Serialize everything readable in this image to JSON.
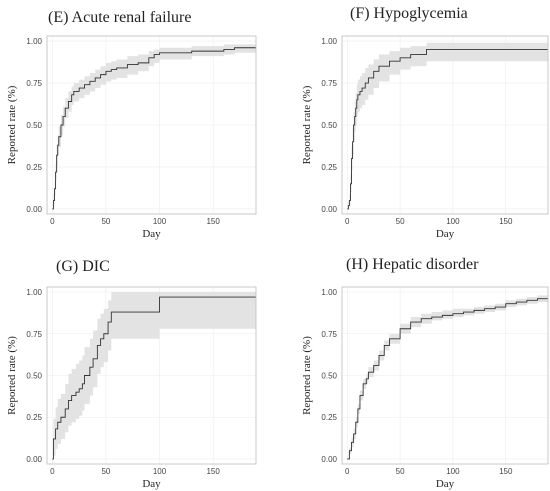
{
  "chart_data": [
    {
      "type": "line",
      "title": "(E) Acute renal failure",
      "xlabel": "Day",
      "ylabel": "Reported rate (%)",
      "xlim": [
        -5,
        190
      ],
      "ylim": [
        -0.03,
        1.03
      ],
      "x_ticks": [
        0,
        50,
        100,
        150
      ],
      "y_ticks": [
        0,
        0.25,
        0.5,
        0.75,
        1
      ],
      "x_tick_labels": [
        "0",
        "50",
        "100",
        "150"
      ],
      "y_tick_labels": [
        "0.00",
        "0.25",
        "0.50",
        "0.75",
        "1.00"
      ],
      "grid": true,
      "step": true,
      "x": [
        0,
        1,
        2,
        3,
        4,
        5,
        6,
        8,
        10,
        12,
        15,
        18,
        20,
        25,
        30,
        35,
        40,
        45,
        50,
        55,
        60,
        70,
        80,
        90,
        95,
        100,
        130,
        160,
        170,
        190
      ],
      "y": [
        0,
        0.05,
        0.12,
        0.22,
        0.32,
        0.38,
        0.43,
        0.5,
        0.55,
        0.6,
        0.64,
        0.68,
        0.7,
        0.72,
        0.74,
        0.76,
        0.78,
        0.8,
        0.82,
        0.83,
        0.84,
        0.86,
        0.87,
        0.9,
        0.92,
        0.93,
        0.94,
        0.95,
        0.96,
        0.96
      ],
      "lower": [
        0,
        0.02,
        0.08,
        0.17,
        0.26,
        0.32,
        0.37,
        0.44,
        0.49,
        0.54,
        0.58,
        0.62,
        0.64,
        0.66,
        0.68,
        0.7,
        0.72,
        0.74,
        0.76,
        0.77,
        0.78,
        0.8,
        0.82,
        0.85,
        0.87,
        0.89,
        0.91,
        0.92,
        0.93,
        0.93
      ],
      "upper": [
        0,
        0.09,
        0.16,
        0.27,
        0.38,
        0.44,
        0.49,
        0.56,
        0.61,
        0.66,
        0.7,
        0.73,
        0.75,
        0.77,
        0.79,
        0.81,
        0.83,
        0.85,
        0.87,
        0.88,
        0.89,
        0.91,
        0.92,
        0.94,
        0.95,
        0.96,
        0.97,
        0.98,
        0.98,
        0.98
      ]
    },
    {
      "type": "line",
      "title": "(F) Hypoglycemia",
      "xlabel": "Day",
      "ylabel": "Reported rate (%)",
      "xlim": [
        -5,
        190
      ],
      "ylim": [
        -0.03,
        1.03
      ],
      "x_ticks": [
        0,
        50,
        100,
        150
      ],
      "y_ticks": [
        0,
        0.25,
        0.5,
        0.75,
        1
      ],
      "x_tick_labels": [
        "0",
        "50",
        "100",
        "150"
      ],
      "y_tick_labels": [
        "0.00",
        "0.25",
        "0.50",
        "0.75",
        "1.00"
      ],
      "grid": true,
      "step": true,
      "x": [
        0,
        1,
        2,
        3,
        4,
        5,
        6,
        7,
        8,
        9,
        10,
        12,
        14,
        17,
        20,
        25,
        30,
        40,
        50,
        60,
        75,
        80,
        190
      ],
      "y": [
        0,
        0.02,
        0.05,
        0.15,
        0.3,
        0.4,
        0.5,
        0.55,
        0.6,
        0.65,
        0.68,
        0.7,
        0.72,
        0.75,
        0.78,
        0.82,
        0.85,
        0.88,
        0.9,
        0.92,
        0.95,
        0.95,
        0.95
      ],
      "lower": [
        0,
        0.0,
        0.02,
        0.1,
        0.23,
        0.32,
        0.41,
        0.46,
        0.5,
        0.55,
        0.58,
        0.6,
        0.62,
        0.65,
        0.68,
        0.72,
        0.76,
        0.8,
        0.83,
        0.85,
        0.88,
        0.88,
        0.88
      ],
      "upper": [
        0,
        0.05,
        0.09,
        0.21,
        0.37,
        0.48,
        0.58,
        0.64,
        0.69,
        0.74,
        0.77,
        0.79,
        0.81,
        0.84,
        0.86,
        0.89,
        0.92,
        0.94,
        0.96,
        0.97,
        0.99,
        0.99,
        0.99
      ]
    },
    {
      "type": "line",
      "title": "(G) DIC",
      "xlabel": "Day",
      "ylabel": "Reported rate (%)",
      "xlim": [
        -5,
        190
      ],
      "ylim": [
        -0.03,
        1.03
      ],
      "x_ticks": [
        0,
        50,
        100,
        150
      ],
      "y_ticks": [
        0,
        0.25,
        0.5,
        0.75,
        1
      ],
      "x_tick_labels": [
        "0",
        "50",
        "100",
        "150"
      ],
      "y_tick_labels": [
        "0.00",
        "0.25",
        "0.50",
        "0.75",
        "1.00"
      ],
      "grid": true,
      "step": true,
      "x": [
        0,
        1,
        3,
        5,
        8,
        12,
        15,
        18,
        22,
        25,
        28,
        30,
        35,
        38,
        42,
        45,
        48,
        52,
        55,
        100,
        190
      ],
      "y": [
        0,
        0.12,
        0.18,
        0.22,
        0.25,
        0.3,
        0.35,
        0.38,
        0.4,
        0.42,
        0.45,
        0.5,
        0.55,
        0.6,
        0.68,
        0.72,
        0.75,
        0.82,
        0.88,
        0.97,
        0.97
      ],
      "lower": [
        0,
        0.02,
        0.06,
        0.09,
        0.12,
        0.16,
        0.2,
        0.22,
        0.24,
        0.26,
        0.29,
        0.33,
        0.38,
        0.43,
        0.51,
        0.55,
        0.58,
        0.65,
        0.72,
        0.78,
        0.78
      ],
      "upper": [
        0,
        0.24,
        0.31,
        0.36,
        0.39,
        0.45,
        0.51,
        0.54,
        0.57,
        0.59,
        0.62,
        0.67,
        0.72,
        0.77,
        0.84,
        0.87,
        0.9,
        0.95,
        1.0,
        1.0,
        1.0
      ]
    },
    {
      "type": "line",
      "title": "(H) Hepatic disorder",
      "xlabel": "Day",
      "ylabel": "Reported rate (%)",
      "xlim": [
        -5,
        190
      ],
      "ylim": [
        -0.03,
        1.03
      ],
      "x_ticks": [
        0,
        50,
        100,
        150
      ],
      "y_ticks": [
        0,
        0.25,
        0.5,
        0.75,
        1
      ],
      "x_tick_labels": [
        "0",
        "50",
        "100",
        "150"
      ],
      "y_tick_labels": [
        "0.00",
        "0.25",
        "0.50",
        "0.75",
        "1.00"
      ],
      "grid": true,
      "step": true,
      "x": [
        0,
        2,
        4,
        6,
        8,
        10,
        12,
        15,
        18,
        20,
        25,
        30,
        35,
        40,
        50,
        60,
        70,
        80,
        90,
        100,
        110,
        120,
        130,
        140,
        150,
        160,
        170,
        180,
        190
      ],
      "y": [
        0,
        0.05,
        0.1,
        0.15,
        0.22,
        0.3,
        0.38,
        0.45,
        0.48,
        0.52,
        0.56,
        0.62,
        0.68,
        0.72,
        0.78,
        0.82,
        0.84,
        0.85,
        0.86,
        0.87,
        0.88,
        0.89,
        0.9,
        0.91,
        0.93,
        0.94,
        0.95,
        0.96,
        0.96
      ],
      "lower": [
        0,
        0.03,
        0.07,
        0.12,
        0.19,
        0.27,
        0.35,
        0.42,
        0.45,
        0.49,
        0.53,
        0.59,
        0.65,
        0.69,
        0.75,
        0.79,
        0.81,
        0.83,
        0.84,
        0.85,
        0.86,
        0.87,
        0.88,
        0.89,
        0.91,
        0.92,
        0.93,
        0.94,
        0.94
      ],
      "upper": [
        0,
        0.07,
        0.13,
        0.18,
        0.25,
        0.33,
        0.41,
        0.48,
        0.51,
        0.55,
        0.59,
        0.65,
        0.71,
        0.75,
        0.81,
        0.85,
        0.87,
        0.88,
        0.89,
        0.9,
        0.9,
        0.91,
        0.92,
        0.93,
        0.95,
        0.96,
        0.97,
        0.98,
        0.98
      ]
    }
  ]
}
